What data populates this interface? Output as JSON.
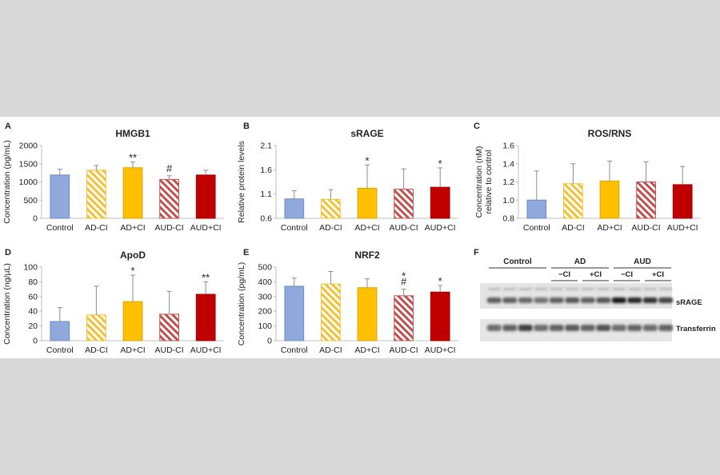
{
  "chart_data": [
    {
      "panel": "A",
      "type": "bar",
      "title": "HMGB1",
      "categories": [
        "Control",
        "AD-CI",
        "AD+CI",
        "AUD-CI",
        "AUD+CI"
      ],
      "values": [
        1190,
        1320,
        1390,
        1070,
        1190
      ],
      "errors": [
        160,
        130,
        160,
        100,
        130
      ],
      "ylabel": [
        "Concentration (pg/mL)"
      ],
      "ylim": [
        0,
        2000
      ],
      "yticks": [
        "0",
        "500",
        "1000",
        "1500",
        "2000"
      ],
      "ytick_values": [
        0,
        500,
        1000,
        1500,
        2000
      ],
      "annotations": [
        "",
        "",
        "**",
        "#",
        ""
      ]
    },
    {
      "panel": "B",
      "type": "bar",
      "title": "sRAGE",
      "categories": [
        "Control",
        "AD-CI",
        "AD+CI",
        "AUD-CI",
        "AUD+CI"
      ],
      "values": [
        1.0,
        0.99,
        1.22,
        1.2,
        1.24
      ],
      "errors": [
        0.17,
        0.2,
        0.48,
        0.42,
        0.4
      ],
      "ylabel": [
        "Relative protein levels"
      ],
      "ylim": [
        0.6,
        2.1
      ],
      "yticks": [
        "0.6",
        "1.1",
        "1.6",
        "2.1"
      ],
      "ytick_values": [
        0.6,
        1.1,
        1.6,
        2.1
      ],
      "annotations": [
        "",
        "",
        "*",
        "",
        "*"
      ]
    },
    {
      "panel": "C",
      "type": "bar",
      "title": "ROS/RNS",
      "categories": [
        "Control",
        "AD-CI",
        "AD+CI",
        "AUD-CI",
        "AUD+CI"
      ],
      "values": [
        1.0,
        1.18,
        1.21,
        1.2,
        1.17
      ],
      "errors": [
        0.32,
        0.22,
        0.22,
        0.22,
        0.2
      ],
      "ylabel": [
        "Concentration (nM)",
        "relative to control"
      ],
      "ylim": [
        0.8,
        1.6
      ],
      "yticks": [
        "0.8",
        "1.0",
        "1.2",
        "1.4",
        "1.6"
      ],
      "ytick_values": [
        0.8,
        1.0,
        1.2,
        1.4,
        1.6
      ],
      "annotations": [
        "",
        "",
        "",
        "",
        ""
      ]
    },
    {
      "panel": "D",
      "type": "bar",
      "title": "ApoD",
      "categories": [
        "Control",
        "AD-CI",
        "AD+CI",
        "AUD-CI",
        "AUD+CI"
      ],
      "values": [
        26,
        35,
        53,
        36,
        63
      ],
      "errors": [
        19,
        39,
        36,
        31,
        17
      ],
      "ylabel": [
        "Concentration (ng/µL)"
      ],
      "ylim": [
        0,
        100
      ],
      "yticks": [
        "0",
        "20",
        "40",
        "60",
        "80",
        "100"
      ],
      "ytick_values": [
        0,
        20,
        40,
        60,
        80,
        100
      ],
      "annotations": [
        "",
        "",
        "*",
        "",
        "**"
      ]
    },
    {
      "panel": "E",
      "type": "bar",
      "title": "NRF2",
      "categories": [
        "Control",
        "AD-CI",
        "AD+CI",
        "AUD-CI",
        "AUD+CI"
      ],
      "values": [
        370,
        385,
        360,
        305,
        330
      ],
      "errors": [
        55,
        85,
        60,
        45,
        45
      ],
      "ylabel": [
        "Concentration (pg/mL)"
      ],
      "ylim": [
        0,
        500
      ],
      "yticks": [
        "0",
        "100",
        "200",
        "300",
        "400",
        "500"
      ],
      "ytick_values": [
        0,
        100,
        200,
        300,
        400,
        500
      ],
      "annotations": [
        "",
        "",
        "",
        "*\n#",
        "*"
      ]
    }
  ],
  "series_styles": [
    {
      "fill": "#8fa9dc",
      "stroke": "#6f8cc4",
      "pattern": "solid"
    },
    {
      "fill": "#ffffff",
      "stroke": "#f2c133",
      "pattern": "hatch"
    },
    {
      "fill": "#ffc000",
      "stroke": "#d9a400",
      "pattern": "solid"
    },
    {
      "fill": "#ffffff",
      "stroke": "#c0504d",
      "pattern": "hatch"
    },
    {
      "fill": "#c00000",
      "stroke": "#a00000",
      "pattern": "solid"
    }
  ],
  "blot": {
    "panel": "F",
    "groups": [
      "Control",
      "AD",
      "AUD"
    ],
    "subgroups": [
      "−CI",
      "+CI",
      "−CI",
      "+CI"
    ],
    "bands": [
      "sRAGE",
      "Transferrin"
    ],
    "lanes": 12,
    "srage_intensity": [
      0.55,
      0.55,
      0.5,
      0.45,
      0.55,
      0.6,
      0.55,
      0.6,
      0.95,
      0.85,
      0.8,
      0.7
    ],
    "transferrin_intensity": [
      0.55,
      0.6,
      0.8,
      0.55,
      0.6,
      0.65,
      0.6,
      0.7,
      0.55,
      0.6,
      0.55,
      0.6
    ]
  }
}
